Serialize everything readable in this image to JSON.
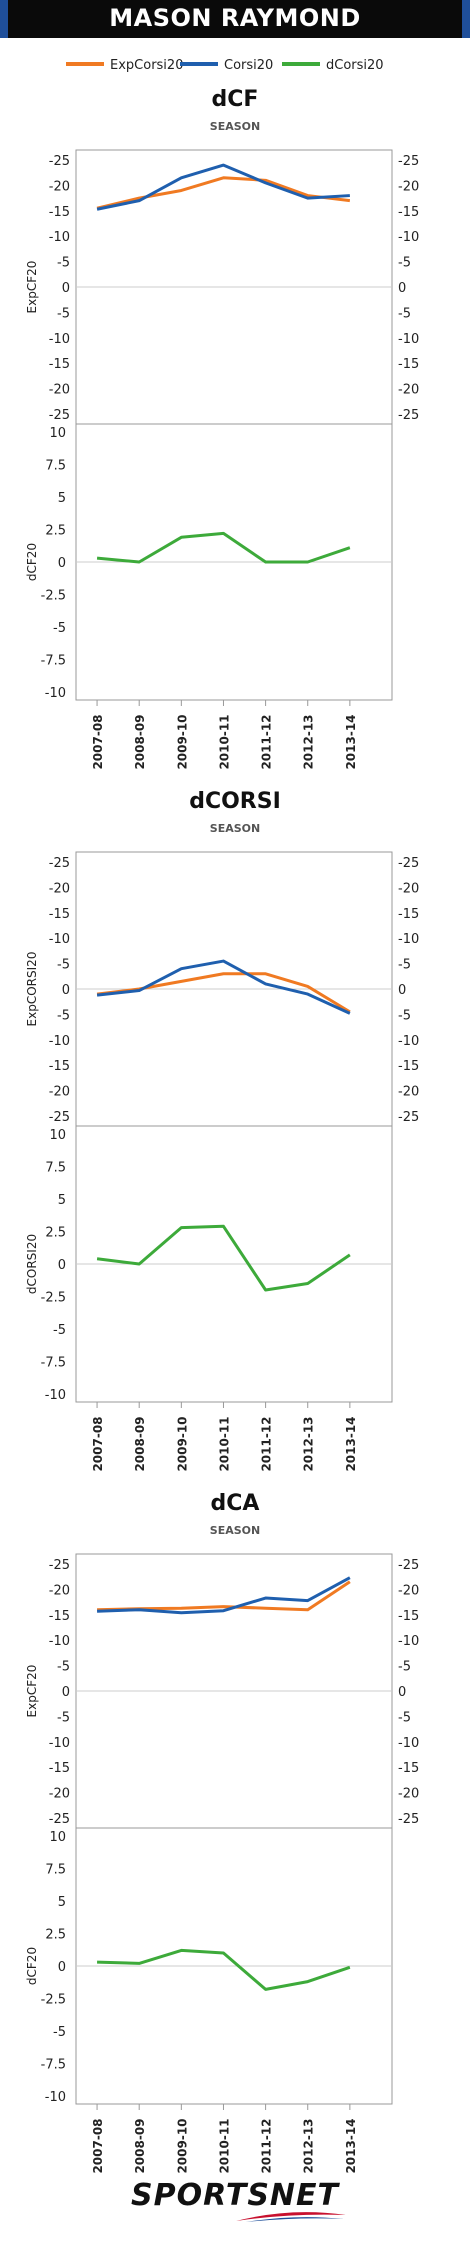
{
  "header": {
    "title": "MASON RAYMOND"
  },
  "legend": {
    "items": [
      {
        "label": "ExpCorsi20",
        "color": "#f07a22"
      },
      {
        "label": "Corsi20",
        "color": "#1f5fae"
      },
      {
        "label": "dCorsi20",
        "color": "#3daa3a"
      }
    ]
  },
  "brand": {
    "text": "SPORTSNET"
  },
  "chart_data": [
    {
      "type": "line",
      "title": "dCF",
      "subtitle": "SEASON",
      "categories": [
        "2007-08",
        "2008-09",
        "2009-10",
        "2010-11",
        "2011-12",
        "2012-13",
        "2013-14"
      ],
      "top": {
        "ylabel": "ExpCF20",
        "ylim": [
          -25,
          25
        ],
        "yticks": [
          "-25",
          "-20",
          "-15",
          "-10",
          "-5",
          "0",
          "-5",
          "-10",
          "-15",
          "-20",
          "-25"
        ],
        "series": [
          {
            "name": "ExpCorsi20",
            "color": "#f07a22",
            "values": [
              15.5,
              17.5,
              19.0,
              21.5,
              21.0,
              18.0,
              17.0
            ]
          },
          {
            "name": "Corsi20",
            "color": "#1f5fae",
            "values": [
              15.3,
              17.0,
              21.5,
              24.0,
              20.5,
              17.5,
              18.0
            ]
          }
        ]
      },
      "bottom": {
        "ylabel": "dCF20",
        "ylim": [
          -10,
          10
        ],
        "yticks": [
          "10",
          "7.5",
          "5",
          "2.5",
          "0",
          "-2.5",
          "-5",
          "-7.5",
          "-10"
        ],
        "series": [
          {
            "name": "dCorsi20",
            "color": "#3daa3a",
            "values": [
              0.3,
              0.0,
              1.9,
              2.2,
              0.0,
              0.0,
              1.1
            ]
          }
        ]
      }
    },
    {
      "type": "line",
      "title": "dCORSI",
      "subtitle": "SEASON",
      "categories": [
        "2007-08",
        "2008-09",
        "2009-10",
        "2010-11",
        "2011-12",
        "2012-13",
        "2013-14"
      ],
      "top": {
        "ylabel": "ExpCORSI20",
        "ylim": [
          -25,
          25
        ],
        "yticks": [
          "-25",
          "-20",
          "-15",
          "-10",
          "-5",
          "0",
          "-5",
          "-10",
          "-15",
          "-20",
          "-25"
        ],
        "series": [
          {
            "name": "ExpCorsi20",
            "color": "#f07a22",
            "values": [
              -1.0,
              0.0,
              1.5,
              3.0,
              3.0,
              0.5,
              -4.5
            ]
          },
          {
            "name": "Corsi20",
            "color": "#1f5fae",
            "values": [
              -1.2,
              -0.3,
              4.0,
              5.5,
              1.0,
              -1.0,
              -4.8
            ]
          }
        ]
      },
      "bottom": {
        "ylabel": "dCORSI20",
        "ylim": [
          -10,
          10
        ],
        "yticks": [
          "10",
          "7.5",
          "5",
          "2.5",
          "0",
          "-2.5",
          "-5",
          "-7.5",
          "-10"
        ],
        "series": [
          {
            "name": "dCorsi20",
            "color": "#3daa3a",
            "values": [
              0.4,
              0.0,
              2.8,
              2.9,
              -2.0,
              -1.5,
              0.7
            ]
          }
        ]
      }
    },
    {
      "type": "line",
      "title": "dCA",
      "subtitle": "SEASON",
      "categories": [
        "2007-08",
        "2008-09",
        "2009-10",
        "2010-11",
        "2011-12",
        "2012-13",
        "2013-14"
      ],
      "top": {
        "ylabel": "ExpCF20",
        "ylim": [
          -25,
          25
        ],
        "yticks": [
          "-25",
          "-20",
          "-15",
          "-10",
          "-5",
          "0",
          "-5",
          "-10",
          "-15",
          "-20",
          "-25"
        ],
        "series": [
          {
            "name": "ExpCorsi20",
            "color": "#f07a22",
            "values": [
              16.0,
              16.2,
              16.3,
              16.6,
              16.3,
              16.0,
              21.5
            ]
          },
          {
            "name": "Corsi20",
            "color": "#1f5fae",
            "values": [
              15.7,
              16.0,
              15.4,
              15.8,
              18.3,
              17.8,
              22.3
            ]
          }
        ]
      },
      "bottom": {
        "ylabel": "dCF20",
        "ylim": [
          -10,
          10
        ],
        "yticks": [
          "10",
          "7.5",
          "5",
          "2.5",
          "0",
          "-2.5",
          "-5",
          "-7.5",
          "-10"
        ],
        "series": [
          {
            "name": "dCorsi20",
            "color": "#3daa3a",
            "values": [
              0.3,
              0.2,
              1.2,
              1.0,
              -1.8,
              -1.2,
              -0.1
            ]
          }
        ]
      }
    }
  ]
}
